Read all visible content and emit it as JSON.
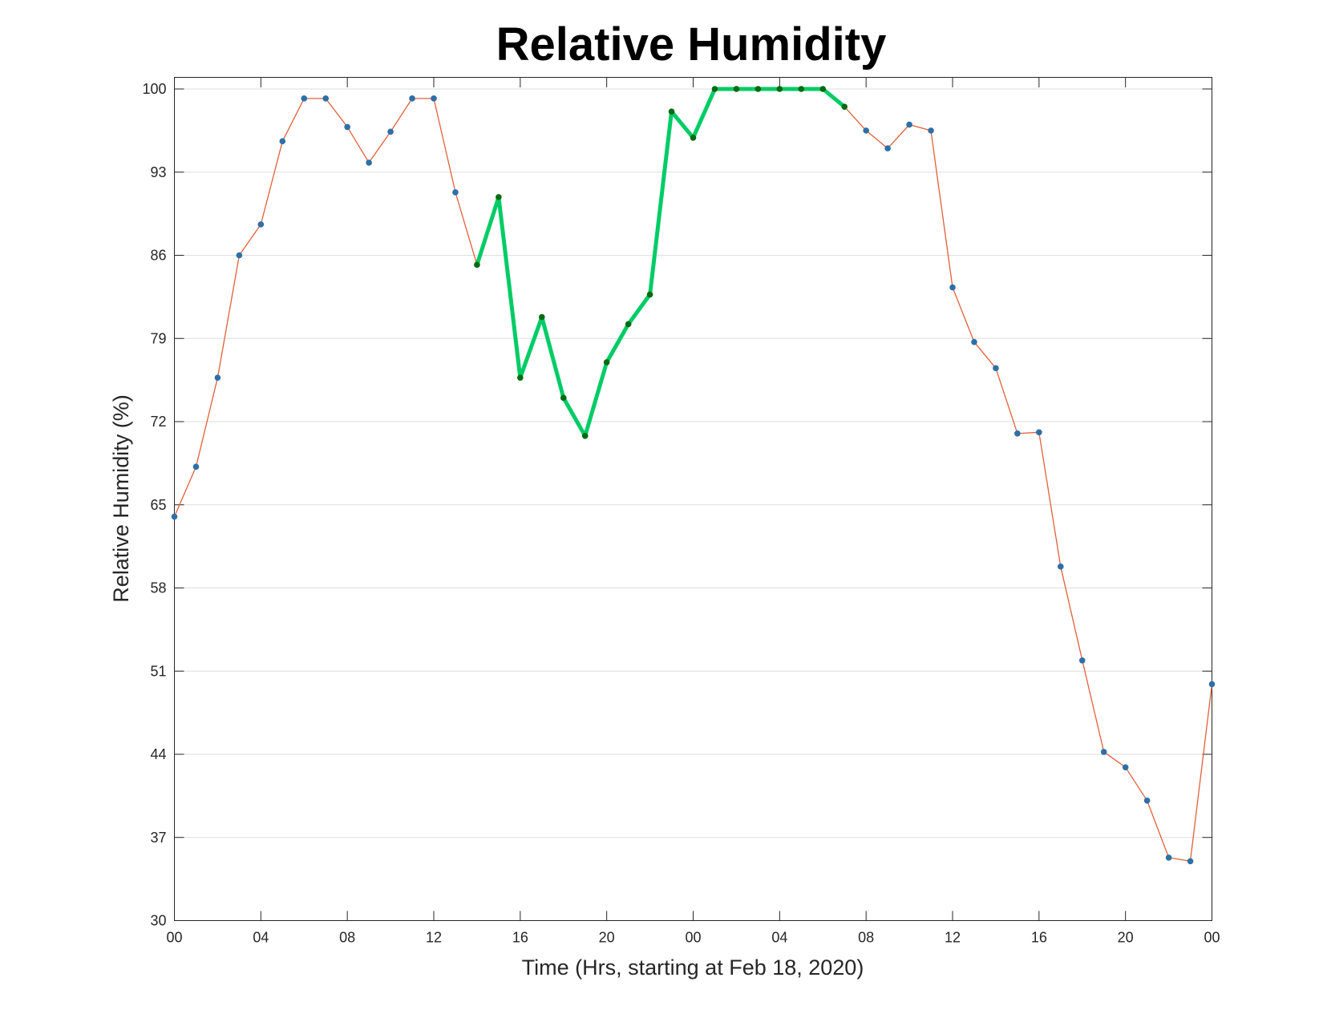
{
  "chart_data": {
    "type": "line",
    "title": "Relative Humidity",
    "xlabel": "Time (Hrs, starting at Feb 18, 2020)",
    "ylabel": "Relative Humidity (%)",
    "ylim": [
      30,
      100
    ],
    "xlim": [
      0,
      48
    ],
    "yticks": [
      30,
      37,
      44,
      51,
      58,
      65,
      72,
      79,
      86,
      93,
      100
    ],
    "xticks": [
      0,
      4,
      8,
      12,
      16,
      20,
      24,
      28,
      32,
      36,
      40,
      44,
      48
    ],
    "xtick_labels": [
      "00",
      "04",
      "08",
      "12",
      "16",
      "20",
      "00",
      "04",
      "08",
      "12",
      "16",
      "20",
      "00"
    ],
    "grid": "horizontal",
    "x": [
      0,
      1,
      2,
      3,
      4,
      5,
      6,
      7,
      8,
      9,
      10,
      11,
      12,
      13,
      14,
      15,
      16,
      17,
      18,
      19,
      20,
      21,
      22,
      23,
      24,
      25,
      26,
      27,
      28,
      29,
      30,
      31,
      32,
      33,
      34,
      35,
      36,
      37,
      38,
      39,
      40,
      41,
      42,
      43,
      44,
      45,
      46,
      47,
      48
    ],
    "series": [
      {
        "values": [
          64.0,
          68.2,
          75.7,
          86.0,
          88.6,
          95.6,
          99.2,
          99.2,
          96.8,
          93.8,
          96.4,
          99.2,
          99.2,
          91.3,
          85.2,
          90.9,
          75.7,
          80.8,
          74.0,
          70.8,
          77.0,
          80.2,
          82.7,
          98.1,
          95.9,
          100,
          100,
          100,
          100,
          100,
          100,
          98.5,
          96.5,
          95.0,
          97.0,
          96.5,
          83.3,
          78.7,
          76.5,
          71.0,
          71.1,
          59.8,
          51.9,
          44.2,
          42.9,
          40.1,
          35.3,
          35.0,
          49.9
        ],
        "color": "#e0603a",
        "marker_color": "#2e6fa6"
      },
      {
        "start_index": 14,
        "end_index": 31,
        "color": "#00cc66",
        "marker_color": "#006b10"
      }
    ]
  }
}
